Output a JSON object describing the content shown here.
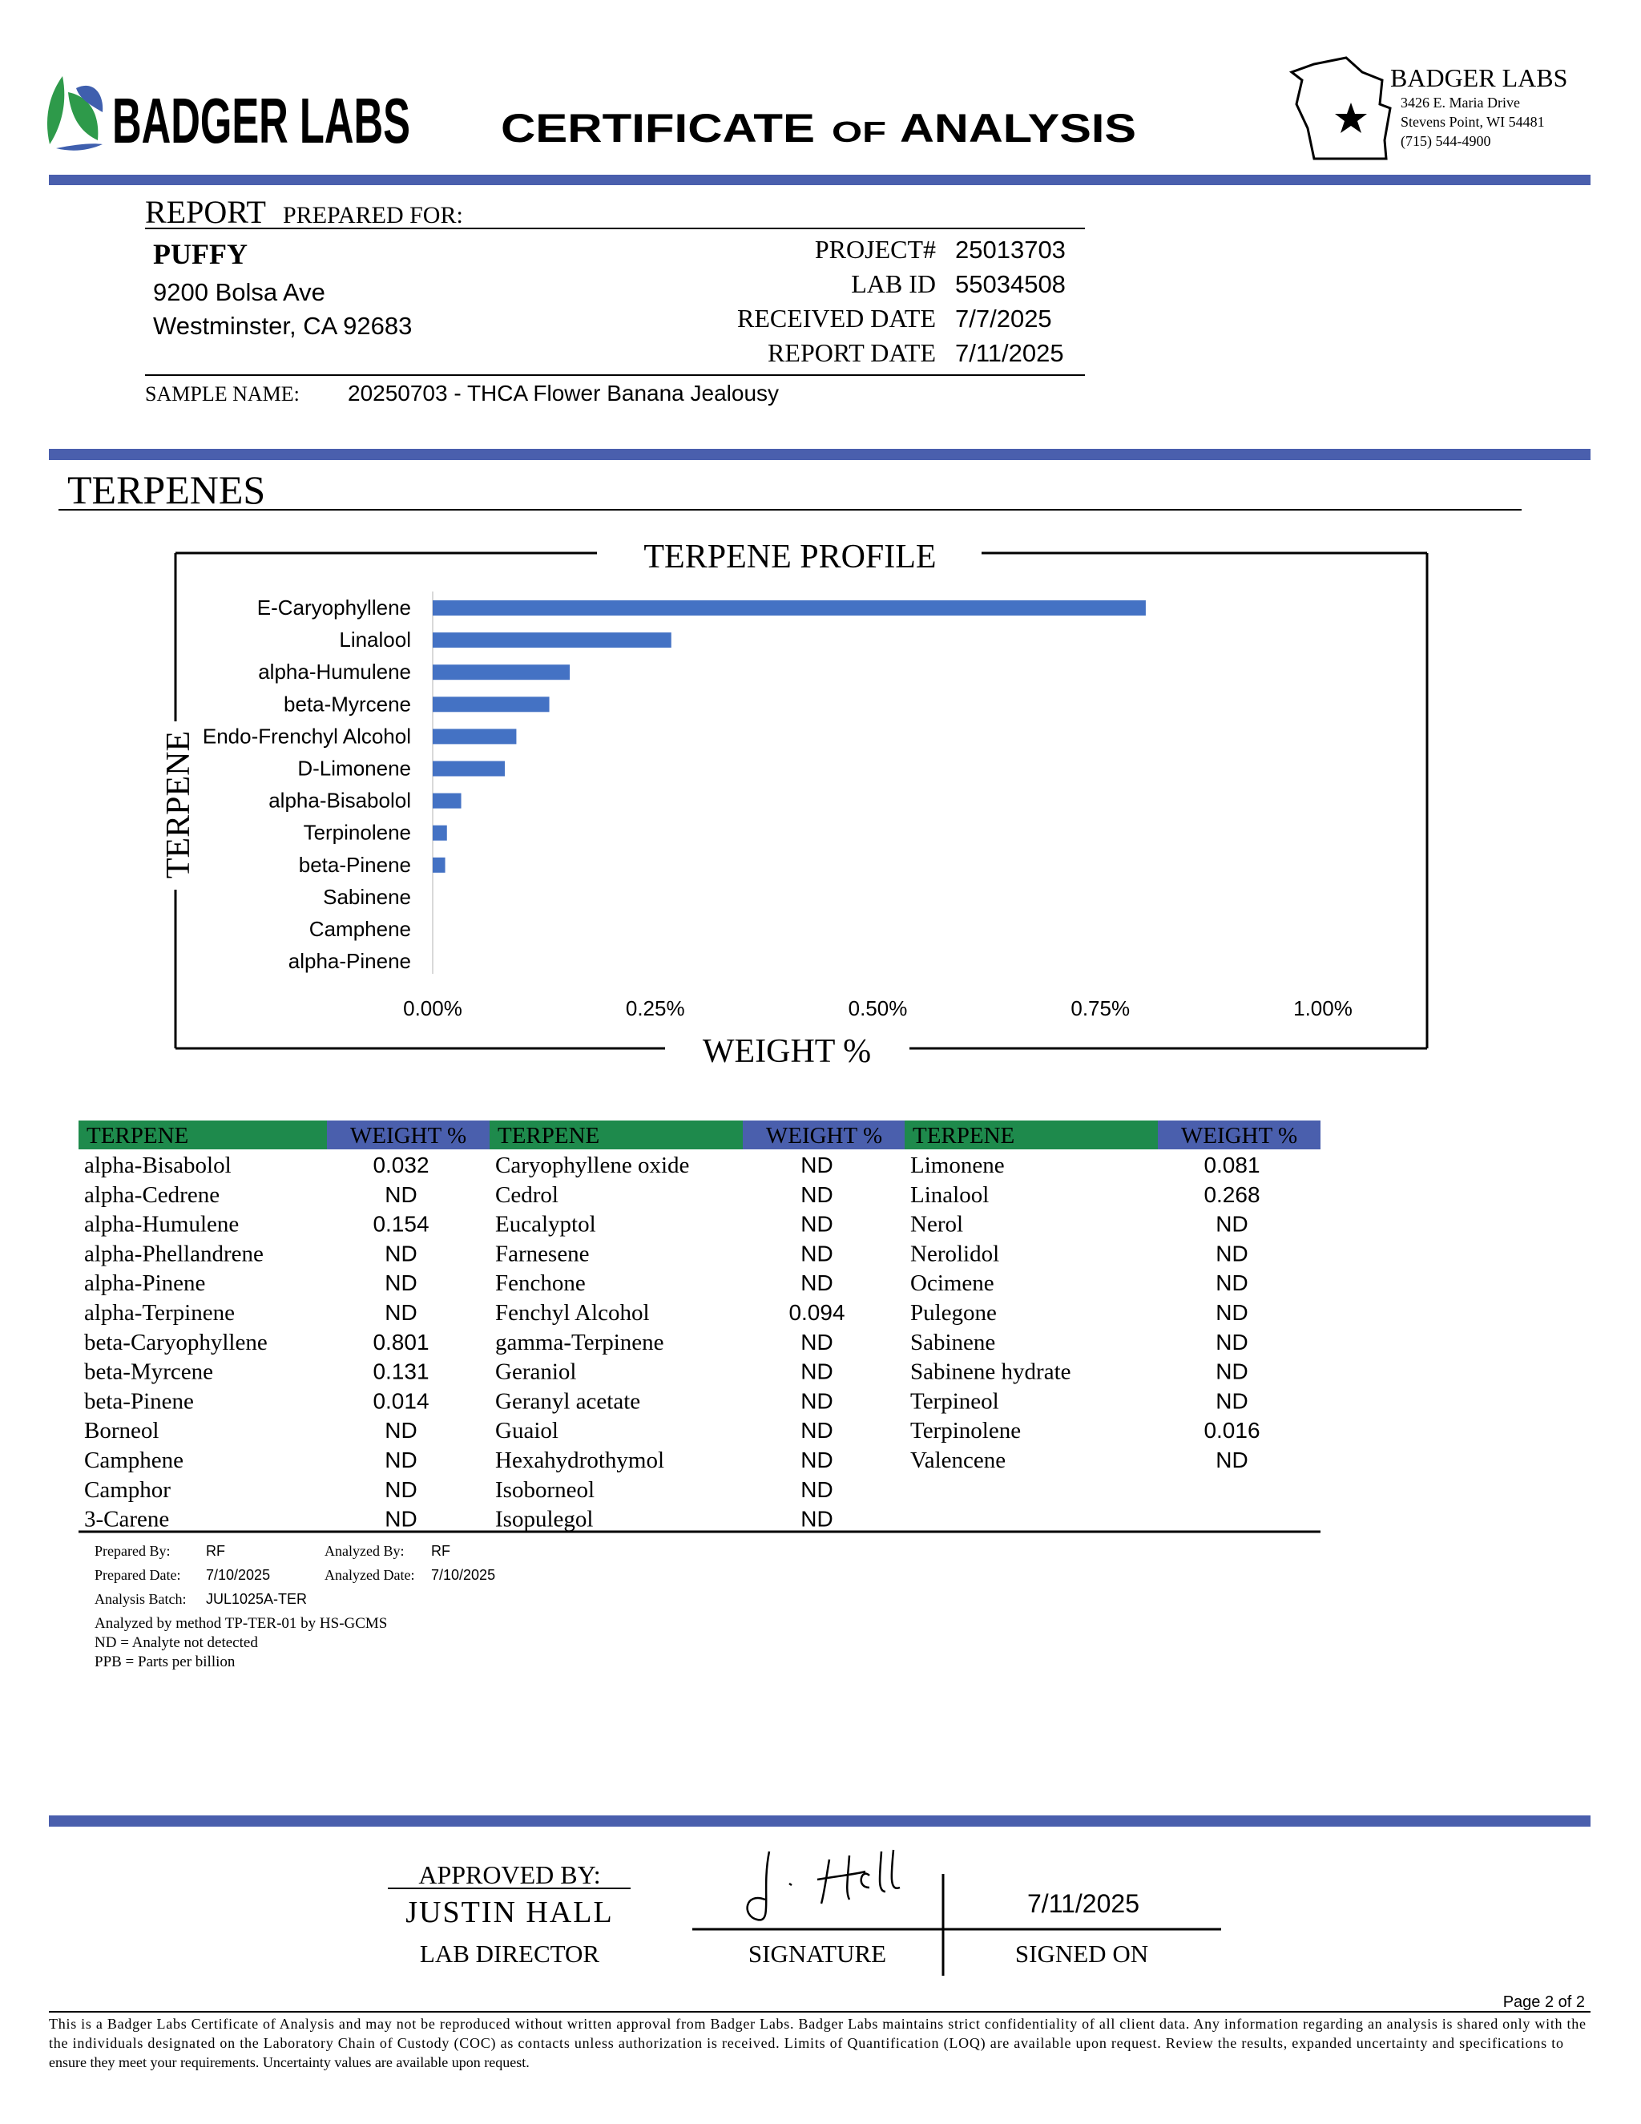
{
  "header": {
    "logo": "BADGER LABS",
    "title_main": "CERTIFICATE",
    "title_of": "OF",
    "title_end": "ANALYSIS",
    "lab_name": "BADGER LABS",
    "lab_address": [
      "3426 E. Maria Drive",
      "Stevens Point, WI 54481",
      "(715) 544-4900"
    ]
  },
  "report": {
    "heading": "REPORT",
    "heading_rest": "PREPARED FOR:",
    "client": "PUFFY",
    "client_address": [
      "9200 Bolsa Ave",
      "Westminster, CA 92683"
    ],
    "fields": [
      {
        "label": "PROJECT#",
        "value": "25013703"
      },
      {
        "label": "LAB ID",
        "value": "55034508"
      },
      {
        "label": "RECEIVED DATE",
        "value": "7/7/2025"
      },
      {
        "label": "REPORT DATE",
        "value": "7/11/2025"
      }
    ],
    "sample_label": "SAMPLE NAME:",
    "sample_name": "20250703 - THCA Flower Banana Jealousy"
  },
  "section_title": "TERPENES",
  "chart_data": {
    "type": "bar",
    "orientation": "horizontal",
    "title": "TERPENE PROFILE",
    "xlabel": "WEIGHT %",
    "ylabel": "TERPENE",
    "categories": [
      "E-Caryophyllene",
      "Linalool",
      "alpha-Humulene",
      "beta-Myrcene",
      "Endo-Frenchyl Alcohol",
      "D-Limonene",
      "alpha-Bisabolol",
      "Terpinolene",
      "beta-Pinene",
      "Sabinene",
      "Camphene",
      "alpha-Pinene"
    ],
    "values": [
      0.801,
      0.268,
      0.154,
      0.131,
      0.094,
      0.081,
      0.032,
      0.016,
      0.014,
      0,
      0,
      0
    ],
    "color": "#4472c4",
    "xlim": [
      0,
      1
    ],
    "xticks": [
      {
        "value": 0,
        "label": "0.00%"
      },
      {
        "value": 0.25,
        "label": "0.25%"
      },
      {
        "value": 0.5,
        "label": "0.50%"
      },
      {
        "value": 0.75,
        "label": "0.75%"
      },
      {
        "value": 1,
        "label": "1.00%"
      }
    ],
    "grid": false
  },
  "table": {
    "headers": [
      "TERPENE",
      "WEIGHT %"
    ],
    "groups": [
      [
        [
          "alpha-Bisabolol",
          "0.032"
        ],
        [
          "alpha-Cedrene",
          "ND"
        ],
        [
          "alpha-Humulene",
          "0.154"
        ],
        [
          "alpha-Phellandrene",
          "ND"
        ],
        [
          "alpha-Pinene",
          "ND"
        ],
        [
          "alpha-Terpinene",
          "ND"
        ],
        [
          "beta-Caryophyllene",
          "0.801"
        ],
        [
          "beta-Myrcene",
          "0.131"
        ],
        [
          "beta-Pinene",
          "0.014"
        ],
        [
          "Borneol",
          "ND"
        ],
        [
          "Camphene",
          "ND"
        ],
        [
          "Camphor",
          "ND"
        ],
        [
          "3-Carene",
          "ND"
        ]
      ],
      [
        [
          "Caryophyllene oxide",
          "ND"
        ],
        [
          "Cedrol",
          "ND"
        ],
        [
          "Eucalyptol",
          "ND"
        ],
        [
          "Farnesene",
          "ND"
        ],
        [
          "Fenchone",
          "ND"
        ],
        [
          "Fenchyl Alcohol",
          "0.094"
        ],
        [
          "gamma-Terpinene",
          "ND"
        ],
        [
          "Geraniol",
          "ND"
        ],
        [
          "Geranyl acetate",
          "ND"
        ],
        [
          "Guaiol",
          "ND"
        ],
        [
          "Hexahydrothymol",
          "ND"
        ],
        [
          "Isoborneol",
          "ND"
        ],
        [
          "Isopulegol",
          "ND"
        ]
      ],
      [
        [
          "Limonene",
          "0.081"
        ],
        [
          "Linalool",
          "0.268"
        ],
        [
          "Nerol",
          "ND"
        ],
        [
          "Nerolidol",
          "ND"
        ],
        [
          "Ocimene",
          "ND"
        ],
        [
          "Pulegone",
          "ND"
        ],
        [
          "Sabinene",
          "ND"
        ],
        [
          "Sabinene hydrate",
          "ND"
        ],
        [
          "Terpineol",
          "ND"
        ],
        [
          "Terpinolene",
          "0.016"
        ],
        [
          "Valencene",
          "ND"
        ]
      ]
    ]
  },
  "notes": {
    "fields": [
      {
        "label": "Prepared By:",
        "value": "RF"
      },
      {
        "label": "Analyzed By:",
        "value": "RF"
      },
      {
        "label": "Prepared Date:",
        "value": "7/10/2025"
      },
      {
        "label": "Analyzed Date:",
        "value": "7/10/2025"
      },
      {
        "label": "Analysis Batch:",
        "value": "JUL1025A-TER"
      }
    ],
    "lines": [
      "Analyzed by method TP-TER-01 by HS-GCMS",
      "ND = Analyte not detected",
      "PPB = Parts per billion"
    ]
  },
  "approval": {
    "approved_label": "APPROVED BY:",
    "name": "JUSTIN HALL",
    "role": "LAB DIRECTOR",
    "signature_label": "SIGNATURE",
    "signed_date": "7/11/2025",
    "signed_label": "SIGNED ON"
  },
  "page": "Page 2 of 2",
  "disclaimer": [
    "This is a Badger Labs Certificate of Analysis and may not be reproduced without written approval from Badger Labs. Badger Labs maintains strict confidentiality of all client data. Any information regarding an analysis is shared only with the",
    "the individuals designated on the Laboratory Chain of Custody (COC) as contacts unless authorization is received. Limits of Quantification (LOQ) are available upon request. Review the results, expanded uncertainty and specifications to",
    "ensure they meet your requirements. Uncertainty values are available upon request."
  ]
}
